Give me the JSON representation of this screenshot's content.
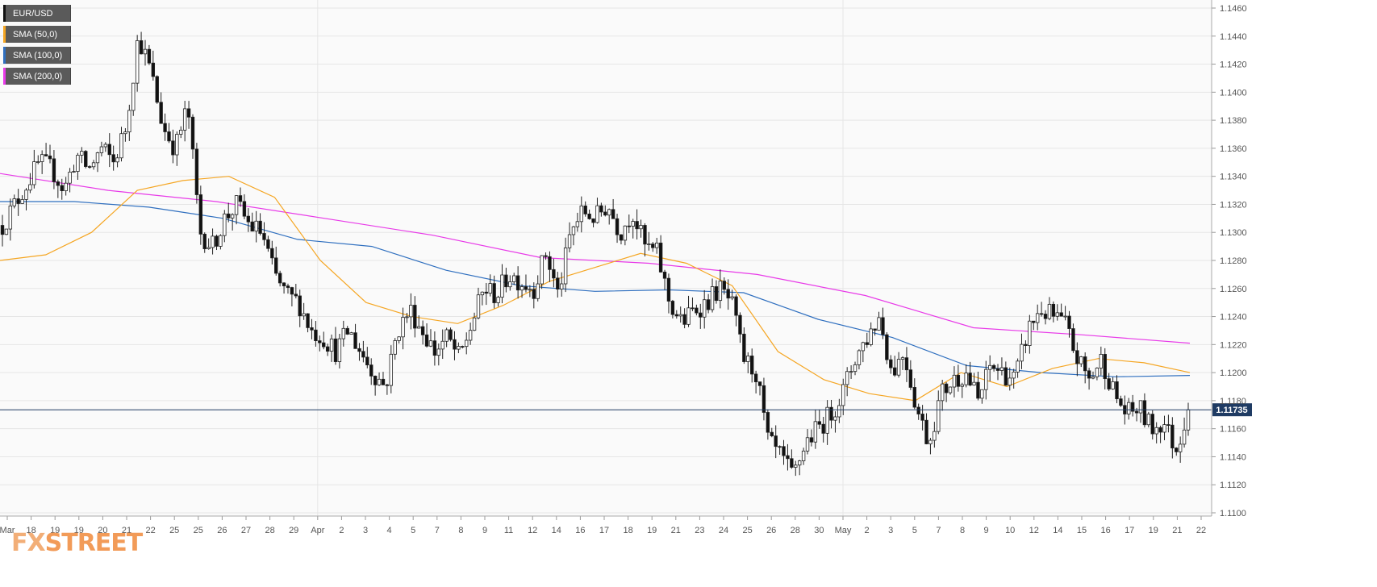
{
  "chart_data": {
    "type": "candlestick",
    "instrument": "EUR/USD",
    "timeframe_note": "4-hour candles",
    "legend": [
      {
        "label": "EUR/USD",
        "color": "#111111"
      },
      {
        "label": "SMA (50,0)",
        "color": "#f5a623"
      },
      {
        "label": "SMA (100,0)",
        "color": "#2f6fbf"
      },
      {
        "label": "SMA (200,0)",
        "color": "#e83ae8"
      }
    ],
    "ylim": [
      1.11,
      1.146
    ],
    "y_ticks": [
      "1.1460",
      "1.1440",
      "1.1420",
      "1.1400",
      "1.1380",
      "1.1360",
      "1.1340",
      "1.1320",
      "1.1300",
      "1.1280",
      "1.1260",
      "1.1240",
      "1.1220",
      "1.1200",
      "1.1180",
      "1.1160",
      "1.1140",
      "1.1120",
      "1.1100"
    ],
    "x_ticks": [
      "Mar",
      "18",
      "19",
      "19",
      "20",
      "21",
      "22",
      "25",
      "25",
      "26",
      "27",
      "28",
      "29",
      "Apr",
      "2",
      "3",
      "4",
      "5",
      "7",
      "8",
      "9",
      "11",
      "12",
      "14",
      "16",
      "17",
      "18",
      "19",
      "21",
      "23",
      "24",
      "25",
      "26",
      "28",
      "30",
      "May",
      "2",
      "3",
      "5",
      "7",
      "8",
      "9",
      "10",
      "12",
      "14",
      "15",
      "16",
      "17",
      "19",
      "21",
      "22"
    ],
    "current_price": "1.11735",
    "current_price_value": 1.11735,
    "price_path": [
      1.1305,
      1.132,
      1.1335,
      1.135,
      1.1345,
      1.133,
      1.1355,
      1.1345,
      1.136,
      1.135,
      1.1375,
      1.144,
      1.1415,
      1.1375,
      1.136,
      1.139,
      1.13,
      1.129,
      1.131,
      1.132,
      1.1305,
      1.13,
      1.127,
      1.1255,
      1.125,
      1.123,
      1.1225,
      1.1215,
      1.123,
      1.1215,
      1.12,
      1.119,
      1.123,
      1.1245,
      1.123,
      1.1215,
      1.1225,
      1.121,
      1.1235,
      1.126,
      1.1255,
      1.127,
      1.1265,
      1.126,
      1.1285,
      1.1255,
      1.13,
      1.1315,
      1.131,
      1.132,
      1.13,
      1.1315,
      1.129,
      1.1285,
      1.125,
      1.1235,
      1.1245,
      1.125,
      1.126,
      1.125,
      1.121,
      1.12,
      1.115,
      1.114,
      1.1125,
      1.115,
      1.116,
      1.117,
      1.1185,
      1.121,
      1.1225,
      1.124,
      1.12,
      1.1215,
      1.1175,
      1.115,
      1.1185,
      1.1195,
      1.12,
      1.118,
      1.1205,
      1.12,
      1.1195,
      1.123,
      1.1245,
      1.124,
      1.1235,
      1.121,
      1.1195,
      1.121,
      1.1185,
      1.117,
      1.1175,
      1.116,
      1.1165,
      1.1145,
      1.11735
    ],
    "sma50": [
      1.128,
      1.1284,
      1.13,
      1.133,
      1.1337,
      1.134,
      1.1325,
      1.128,
      1.125,
      1.124,
      1.1235,
      1.1248,
      1.1265,
      1.1275,
      1.1285,
      1.1278,
      1.1262,
      1.1215,
      1.1195,
      1.1185,
      1.118,
      1.12,
      1.119,
      1.1203,
      1.121,
      1.1207,
      1.12
    ],
    "sma100": [
      1.1322,
      1.1322,
      1.1318,
      1.131,
      1.1295,
      1.129,
      1.1273,
      1.1262,
      1.1258,
      1.1259,
      1.1257,
      1.1238,
      1.1225,
      1.1205,
      1.12,
      1.1197,
      1.1198
    ],
    "sma200": [
      1.1342,
      1.133,
      1.1322,
      1.131,
      1.1298,
      1.1282,
      1.1278,
      1.127,
      1.1255,
      1.1232,
      1.1227,
      1.1221
    ]
  }
}
